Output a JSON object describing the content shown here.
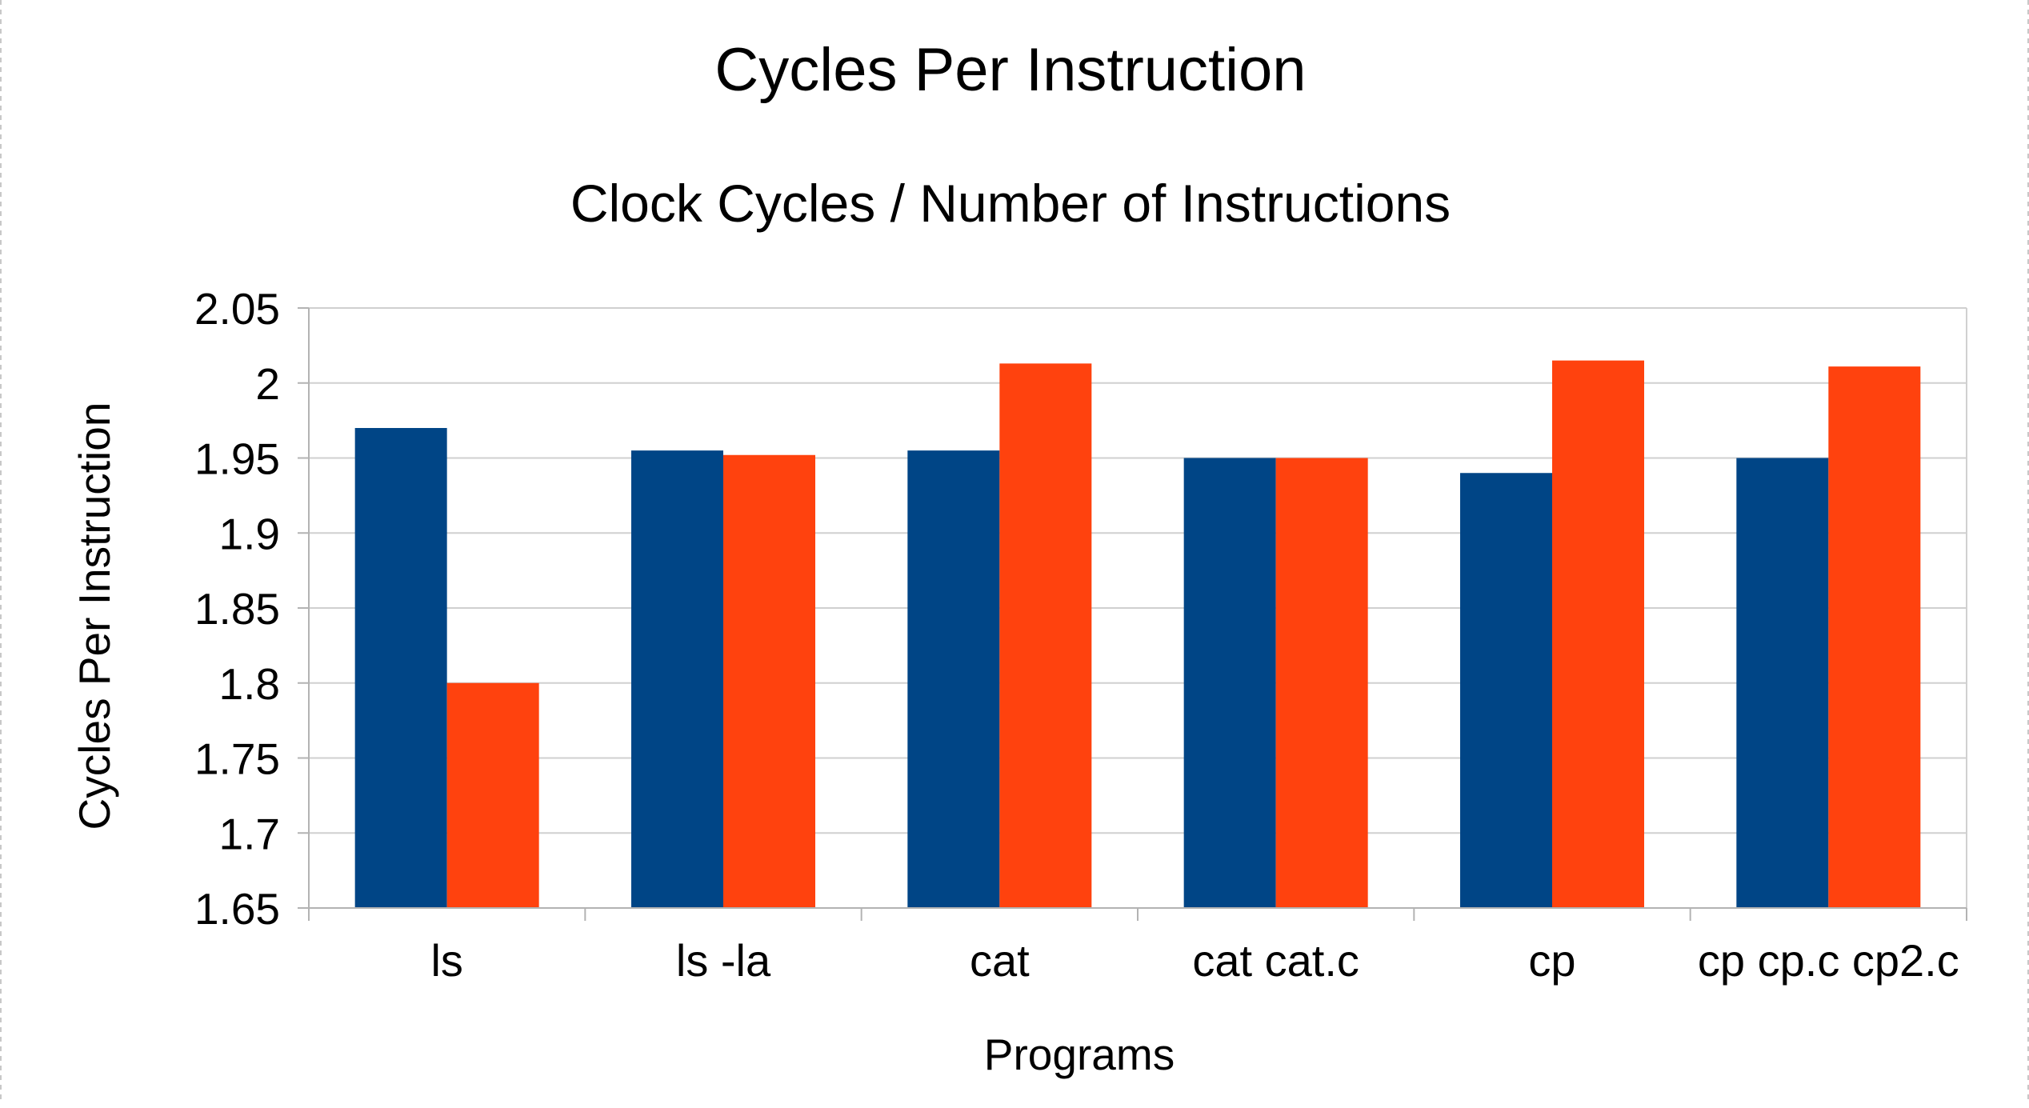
{
  "chart_data": {
    "type": "bar",
    "title": "Cycles Per Instruction",
    "subtitle": "Clock Cycles / Number of Instructions",
    "xlabel": "Programs",
    "ylabel": "Cycles Per Instruction",
    "ylim": [
      1.65,
      2.05
    ],
    "yticks": [
      1.65,
      1.7,
      1.75,
      1.8,
      1.85,
      1.9,
      1.95,
      2,
      2.05
    ],
    "ytick_labels": [
      "1.65",
      "1.7",
      "1.75",
      "1.8",
      "1.85",
      "1.9",
      "1.95",
      "2",
      "2.05"
    ],
    "grid": true,
    "legend": "none",
    "categories": [
      "ls",
      "ls -la",
      "cat",
      "cat cat.c",
      "cp",
      "cp cp.c cp2.c"
    ],
    "series": [
      {
        "color": "#004586",
        "values": [
          1.97,
          1.955,
          1.955,
          1.95,
          1.94,
          1.95
        ]
      },
      {
        "color": "#ff420e",
        "values": [
          1.8,
          1.952,
          2.013,
          1.95,
          2.015,
          2.011
        ]
      }
    ]
  }
}
